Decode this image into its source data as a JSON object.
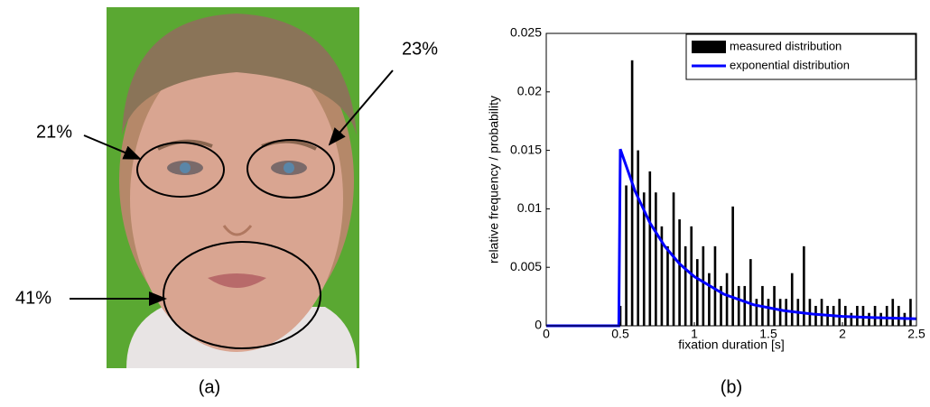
{
  "figure_a": {
    "caption": "(a)",
    "annotations": [
      "21%",
      "23%",
      "41%"
    ]
  },
  "chart_data": {
    "type": "histogram",
    "caption": "(b)",
    "xlabel": "fixation duration [s]",
    "ylabel": "relative frequency / probability",
    "xlim": [
      0,
      2.5
    ],
    "ylim": [
      0,
      0.025
    ],
    "xticks": [
      0,
      0.5,
      1,
      1.5,
      2,
      2.5
    ],
    "yticks": [
      0,
      0.005,
      0.01,
      0.015,
      0.02,
      0.025
    ],
    "legend": "upper right",
    "series": [
      {
        "name": "measured distribution",
        "color": "#000000",
        "bins": [
          0.48,
          0.52,
          0.56,
          0.6,
          0.64,
          0.68,
          0.72,
          0.76,
          0.8,
          0.84,
          0.88,
          0.92,
          0.96,
          1.0,
          1.04,
          1.08,
          1.12,
          1.16,
          1.2,
          1.24,
          1.28,
          1.32,
          1.36,
          1.4,
          1.44,
          1.48,
          1.52,
          1.56,
          1.6,
          1.64,
          1.68,
          1.72,
          1.76,
          1.8,
          1.84,
          1.88,
          1.92,
          1.96,
          2.0,
          2.04,
          2.08,
          2.12,
          2.16,
          2.2,
          2.24,
          2.28,
          2.32,
          2.36,
          2.4,
          2.44,
          2.48
        ],
        "values": [
          0.0017,
          0.012,
          0.0227,
          0.015,
          0.0114,
          0.0132,
          0.0114,
          0.0085,
          0.0068,
          0.0114,
          0.0091,
          0.0068,
          0.0085,
          0.0057,
          0.0068,
          0.0045,
          0.0068,
          0.0034,
          0.0045,
          0.0102,
          0.0034,
          0.0034,
          0.0057,
          0.0023,
          0.0034,
          0.0023,
          0.0034,
          0.0023,
          0.0023,
          0.0045,
          0.0023,
          0.0068,
          0.0023,
          0.0017,
          0.0023,
          0.0017,
          0.0017,
          0.0023,
          0.0017,
          0.0011,
          0.0017,
          0.0017,
          0.0011,
          0.0017,
          0.0011,
          0.0017,
          0.0023,
          0.0017,
          0.0011,
          0.0023
        ]
      },
      {
        "name": "exponential distribution",
        "color": "#0000ff",
        "type": "line",
        "x": [
          0,
          0.49,
          0.5,
          0.6,
          0.7,
          0.8,
          0.9,
          1.0,
          1.2,
          1.4,
          1.6,
          1.8,
          2.0,
          2.2,
          2.5
        ],
        "values": [
          0,
          0,
          0.0151,
          0.0115,
          0.0088,
          0.0068,
          0.0053,
          0.0042,
          0.0027,
          0.0018,
          0.0013,
          0.001,
          0.0008,
          0.0007,
          0.0006
        ]
      }
    ]
  }
}
